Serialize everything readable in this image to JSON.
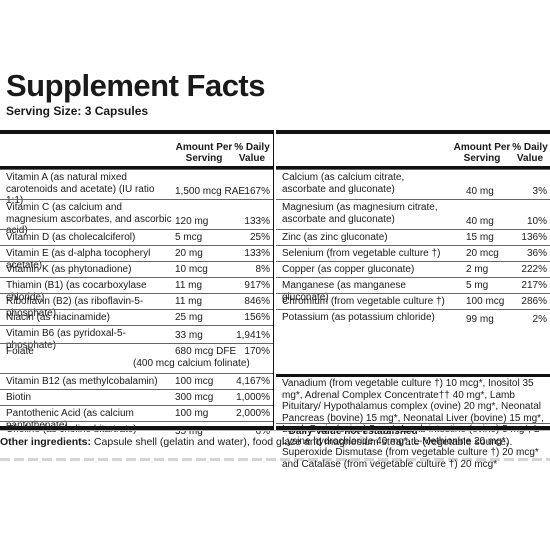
{
  "title": "Supplement Facts",
  "serving_size": "Serving Size: 3 Capsules",
  "headers": {
    "amount": "Amount Per Serving",
    "dv": "% Daily Value"
  },
  "left_rows": [
    {
      "name": "Vitamin A (as natural mixed carotenoids and acetate) (IU ratio 1:1)",
      "amount": "1,500 mcg RAE",
      "dv": "167%"
    },
    {
      "name": "Vitamin C (as calcium and magnesium ascorbates, and ascorbic acid)",
      "amount": "120 mg",
      "dv": "133%"
    },
    {
      "name": "Vitamin D (as cholecalciferol)",
      "amount": "5 mcg",
      "dv": "25%"
    },
    {
      "name": "Vitamin E (as d-alpha tocopheryl acetate)",
      "amount": "20 mg",
      "dv": "133%"
    },
    {
      "name": "Vitamin K (as phytonadione)",
      "amount": "10 mcg",
      "dv": "8%"
    },
    {
      "name": "Thiamin (B1) (as cocarboxylase chloride)",
      "amount": "11 mg",
      "dv": "917%"
    },
    {
      "name": "Riboflavin (B2) (as riboflavin-5-phosphate)",
      "amount": "11 mg",
      "dv": "846%"
    },
    {
      "name": "Niacin (as niacinamide)",
      "amount": "25 mg",
      "dv": "156%"
    },
    {
      "name": "Vitamin B6 (as pyridoxal-5-phosphate)",
      "amount": "33 mg",
      "dv": "1,941%"
    },
    {
      "name": "Folate",
      "amount": "680 mcg DFE",
      "amount2": "(400 mcg calcium folinate)",
      "dv": "170%"
    },
    {
      "name": "Vitamin B12 (as methylcobalamin)",
      "amount": "100 mcg",
      "dv": "4,167%"
    },
    {
      "name": "Biotin",
      "amount": "300 mcg",
      "dv": "1,000%"
    },
    {
      "name": "Pantothenic Acid (as calcium pantothenate)",
      "amount": "100 mg",
      "dv": "2,000%"
    },
    {
      "name": "Choline (as choline bitartrate)",
      "amount": "35 mg",
      "dv": "6%"
    }
  ],
  "right_rows": [
    {
      "name": "Calcium (as calcium citrate, ascorbate and gluconate)",
      "amount": "40 mg",
      "dv": "3%"
    },
    {
      "name": "Magnesium (as magnesium citrate, ascorbate and gluconate)",
      "amount": "40 mg",
      "dv": "10%"
    },
    {
      "name": "Zinc (as zinc gluconate)",
      "amount": "15 mg",
      "dv": "136%"
    },
    {
      "name": "Selenium (from vegetable culture †)",
      "amount": "20 mcg",
      "dv": "36%"
    },
    {
      "name": "Copper (as copper gluconate)",
      "amount": "2 mg",
      "dv": "222%"
    },
    {
      "name": "Manganese (as manganese gluconate)",
      "amount": "5 mg",
      "dv": "217%"
    },
    {
      "name": "Chromium (from vegetable culture †)",
      "amount": "100 mcg",
      "dv": "286%"
    },
    {
      "name": "Potassium (as potassium chloride)",
      "amount": "99 mg",
      "dv": "2%"
    }
  ],
  "other_list": "Vanadium (from vegetable culture †) 10 mcg*, Inositol 35 mg*, Adrenal Complex Concentrate†† 40 mg*, Lamb Pituitary/ Hypothalamus complex (ovine) 20 mg*, Neonatal Pancreas (bovine) 15 mg*, Neonatal Liver (bovine) 15 mg*, Lamb Brain (ovine) 5 mg*, Lamb intestine (ovine) 5 mg*, L-Lysine hydrochloride 40 mg*, L-Methionine 20 mg*, Superoxide Dismutase (from vegetable culture †) 20 mcg* and Catalase (from vegetable culture †) 20 mcg*",
  "footnote": "* Daily Value not established",
  "other_ingredients_label": "Other ingredients:",
  "other_ingredients_text": " Capsule shell (gelatin and water), food glaze and magnesium stearate (vegetable source)."
}
